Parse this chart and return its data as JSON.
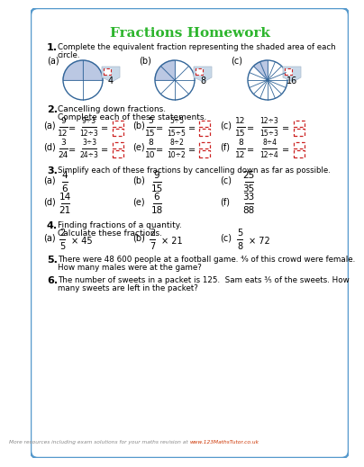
{
  "title": "Fractions Homework",
  "title_color": "#2db52d",
  "background_color": "#ffffff",
  "border_color": "#5599cc",
  "text_color": "#222222",
  "fraction_color": "#333333",
  "circle_edge": "#336699",
  "circle_fill": "#aabbdd",
  "answer_box_color": "#cc2222",
  "s1_label": "1.",
  "s1_text1": "Complete the equivalent fraction representing the shaded area of each",
  "s1_text2": "circle.",
  "s2_label": "2.",
  "s2_text1": "Cancelling down fractions.",
  "s2_text2": "Complete each of these statements.",
  "s3_label": "3.",
  "s3_text": "Simplify each of these fractions by cancelling down as far as possible.",
  "s4_label": "4.",
  "s4_text1": "Finding fractions of a quantity.",
  "s4_text2": "Calculate these fractions.",
  "s5_label": "5.",
  "s5_text1": "There were 48 600 people at a football game. ⁴⁄₉ of this crowd were female.",
  "s5_text2": "How many males were at the game?",
  "s6_label": "6.",
  "s6_text1": "The number of sweets in a packet is 125.  Sam eats ³⁄₅ of the sweets. How",
  "s6_text2": "many sweets are left in the packet?",
  "footer_text": "More resources including exam solutions for your maths revision at ",
  "footer_url": "www.123MathsTutor.co.uk"
}
